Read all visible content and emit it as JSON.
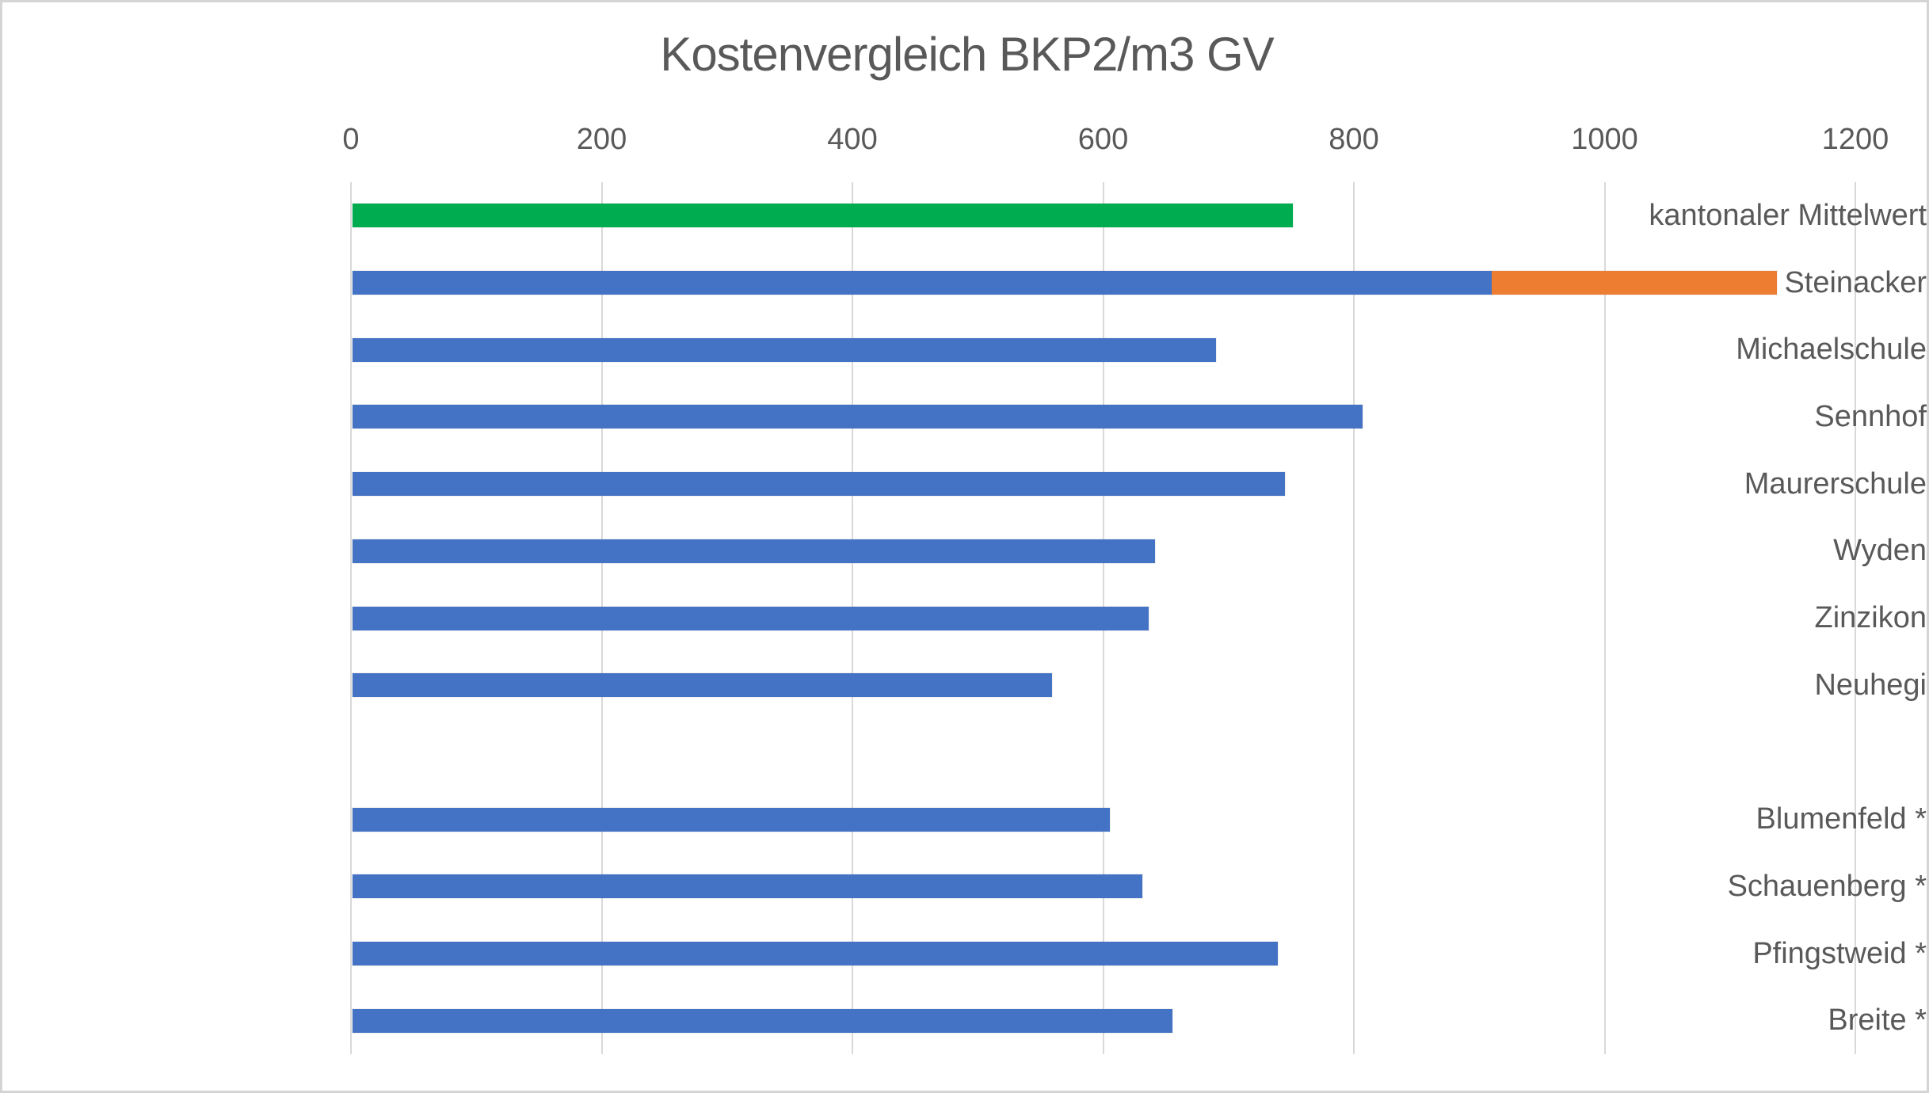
{
  "title": "Kostenvergleich BKP2/m3 GV",
  "colors": {
    "bar_blue": "#4472C4",
    "bar_orange": "#ED7D31",
    "bar_green": "#00AC50",
    "gridline": "#D9D9D9",
    "text": "#595959",
    "frame_border": "#D5D5D5",
    "background": "#FFFFFF"
  },
  "chart_data": {
    "type": "bar",
    "orientation": "horizontal",
    "title": "Kostenvergleich BKP2/m3 GV",
    "xlabel": "",
    "ylabel": "",
    "xlim": [
      0,
      1200
    ],
    "xticks": [
      "0",
      "200",
      "400",
      "600",
      "800",
      "1000",
      "1200"
    ],
    "xtick_values": [
      0,
      200,
      400,
      600,
      800,
      1000,
      1200
    ],
    "axis_position": "top",
    "grid": "vertical",
    "legend": "none",
    "categories": [
      "kantonaler Mittelwert",
      "Steinacker",
      "Michaelschule",
      "Sennhof",
      "Maurerschule",
      "Wyden",
      "Zinzikon",
      "Neuhegi",
      "",
      "Blumenfeld *",
      "Schauenberg *",
      "Pfingstweid *",
      "Breite *"
    ],
    "rows": [
      {
        "label": "kantonaler Mittelwert",
        "total": 750,
        "segments": [
          {
            "value": 750,
            "color": "#00AC50"
          }
        ]
      },
      {
        "label": "Steinacker",
        "total": 1136,
        "segments": [
          {
            "value": 909,
            "color": "#4472C4"
          },
          {
            "value": 227,
            "color": "#ED7D31"
          }
        ]
      },
      {
        "label": "Michaelschule",
        "total": 689,
        "segments": [
          {
            "value": 689,
            "color": "#4472C4"
          }
        ]
      },
      {
        "label": "Sennhof",
        "total": 806,
        "segments": [
          {
            "value": 806,
            "color": "#4472C4"
          }
        ]
      },
      {
        "label": "Maurerschule",
        "total": 744,
        "segments": [
          {
            "value": 744,
            "color": "#4472C4"
          }
        ]
      },
      {
        "label": "Wyden",
        "total": 640,
        "segments": [
          {
            "value": 640,
            "color": "#4472C4"
          }
        ]
      },
      {
        "label": "Zinzikon",
        "total": 635,
        "segments": [
          {
            "value": 635,
            "color": "#4472C4"
          }
        ]
      },
      {
        "label": "Neuhegi",
        "total": 558,
        "segments": [
          {
            "value": 558,
            "color": "#4472C4"
          }
        ]
      },
      {
        "label": "",
        "total": 0,
        "segments": []
      },
      {
        "label": "Blumenfeld *",
        "total": 604,
        "segments": [
          {
            "value": 604,
            "color": "#4472C4"
          }
        ]
      },
      {
        "label": "Schauenberg *",
        "total": 630,
        "segments": [
          {
            "value": 630,
            "color": "#4472C4"
          }
        ]
      },
      {
        "label": "Pfingstweid *",
        "total": 738,
        "segments": [
          {
            "value": 738,
            "color": "#4472C4"
          }
        ]
      },
      {
        "label": "Breite *",
        "total": 654,
        "segments": [
          {
            "value": 654,
            "color": "#4472C4"
          }
        ]
      }
    ]
  }
}
